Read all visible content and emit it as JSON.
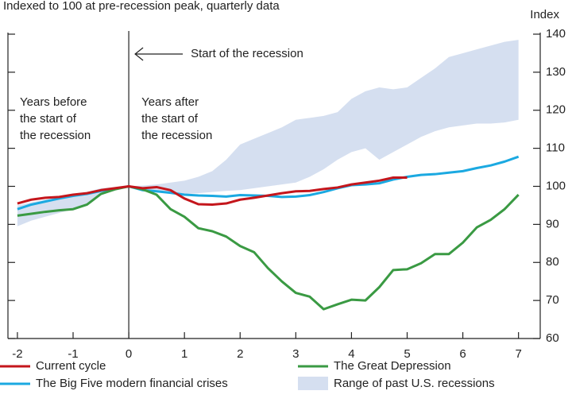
{
  "chart_data": {
    "type": "line",
    "subtitle": "Indexed to 100 at pre-recession peak, quarterly data",
    "y_label": "Index",
    "annotations": {
      "start": "Start of the recession",
      "before": [
        "Years before",
        "the start of",
        "the recession"
      ],
      "after": [
        "Years after",
        "the start of",
        "the recession"
      ]
    },
    "x": [
      -2,
      -1.75,
      -1.5,
      -1.25,
      -1,
      -0.75,
      -0.5,
      -0.25,
      0,
      0.25,
      0.5,
      0.75,
      1,
      1.25,
      1.5,
      1.75,
      2,
      2.25,
      2.5,
      2.75,
      3,
      3.25,
      3.5,
      3.75,
      4,
      4.25,
      4.5,
      4.75,
      5,
      5.25,
      5.5,
      5.75,
      6,
      6.25,
      6.5,
      6.75,
      7
    ],
    "series": [
      {
        "name": "Current cycle",
        "color": "#c4161c",
        "values": [
          95.5,
          96.5,
          97,
          97.2,
          97.8,
          98.2,
          99,
          99.5,
          100,
          99.5,
          99.8,
          99,
          96.8,
          95.3,
          95.2,
          95.5,
          96.5,
          97,
          97.6,
          98.2,
          98.7,
          98.8,
          99.3,
          99.7,
          100.5,
          101,
          101.5,
          102.3,
          102.3,
          null,
          null,
          null,
          null,
          null,
          null,
          null,
          null
        ]
      },
      {
        "name": "The Big Five modern financial crises",
        "color": "#1ba9e1",
        "values": [
          94,
          95.2,
          96,
          96.8,
          97.5,
          98,
          98.8,
          99.3,
          100,
          99,
          98.7,
          98.3,
          97.8,
          97.6,
          97.5,
          97.3,
          97.7,
          97.6,
          97.5,
          97.2,
          97.3,
          97.7,
          98.5,
          99.5,
          100.3,
          100.5,
          100.8,
          101.8,
          102.5,
          103,
          103.2,
          103.6,
          104,
          104.8,
          105.5,
          106.5,
          107.8
        ]
      },
      {
        "name": "The Great Depression",
        "color": "#3a9a43",
        "values": [
          92.3,
          92.8,
          93.3,
          93.7,
          94,
          95.2,
          98,
          99.2,
          100,
          99.2,
          97.8,
          94,
          92,
          89,
          88.2,
          86.8,
          84.3,
          82.7,
          78.5,
          75,
          72,
          71,
          67.7,
          69,
          70.2,
          70,
          73.5,
          78,
          78.2,
          79.8,
          82.2,
          82.2,
          85.2,
          89.2,
          91.2,
          94,
          97.8
        ]
      }
    ],
    "band": {
      "name": "Range of past U.S. recessions",
      "color": "#d5dff0",
      "low": [
        89.5,
        91,
        92,
        93,
        94,
        95.5,
        98,
        99,
        100,
        99,
        98.5,
        98.2,
        98,
        98.2,
        98.5,
        98.8,
        99,
        99.5,
        100,
        100.5,
        101,
        102.5,
        104.5,
        107,
        109,
        110,
        107,
        109,
        111,
        113,
        114.5,
        115.5,
        116,
        116.5,
        116.5,
        116.8,
        117.5
      ],
      "high": [
        95,
        95.8,
        96.5,
        97,
        97.5,
        98.5,
        99.5,
        99.8,
        100,
        100.2,
        100.5,
        101,
        101.5,
        102.5,
        104,
        107,
        111,
        112.5,
        114,
        115.5,
        117.5,
        118,
        118.5,
        119.5,
        123,
        125,
        126,
        125.5,
        126,
        128.5,
        131,
        134,
        135,
        136,
        137,
        138,
        138.5
      ]
    },
    "xlim": [
      -2.17,
      7.39
    ],
    "xticks": [
      -2,
      -1,
      0,
      1,
      2,
      3,
      4,
      5,
      6,
      7
    ],
    "ylim": [
      60,
      140
    ],
    "yticks": [
      60,
      70,
      80,
      90,
      100,
      110,
      120,
      130,
      140
    ],
    "recession_start": 0
  }
}
